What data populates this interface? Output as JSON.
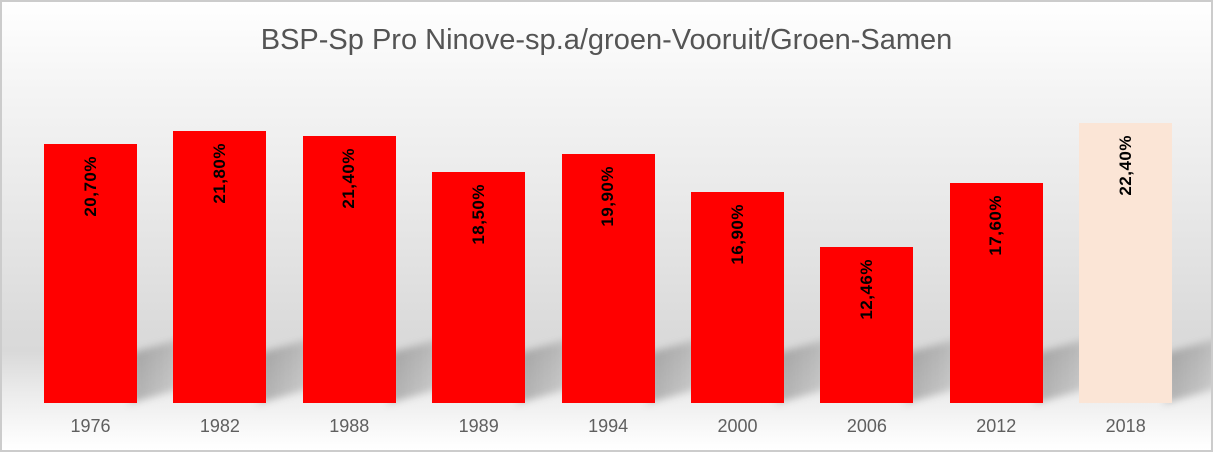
{
  "chart_data": {
    "type": "bar",
    "title": "BSP-Sp Pro Ninove-sp.a/groen-Vooruit/Groen-Samen",
    "categories": [
      "1976",
      "1982",
      "1988",
      "1989",
      "1994",
      "2000",
      "2006",
      "2012",
      "2018"
    ],
    "values": [
      20.7,
      21.8,
      21.4,
      18.5,
      19.9,
      16.9,
      12.46,
      17.6,
      22.4
    ],
    "value_labels": [
      "20,70%",
      "21,80%",
      "21,40%",
      "18,50%",
      "19,90%",
      "16,90%",
      "12,46%",
      "17,60%",
      "22,40%"
    ],
    "xlabel": "",
    "ylabel": "",
    "ylim": [
      0,
      24
    ],
    "grid": false,
    "legend_position": "none"
  },
  "style": {
    "bar_color": "#FF0000",
    "highlight_bar_color": "#FBE5D6",
    "highlight_index": 8,
    "value_label_color": "#000000",
    "axis_label_color": "#5F5F5F",
    "title_color": "#545454",
    "background_top": "#FFFFFF",
    "background_mid": "#D9D9D9",
    "background_bottom": "#FFFFFF"
  }
}
